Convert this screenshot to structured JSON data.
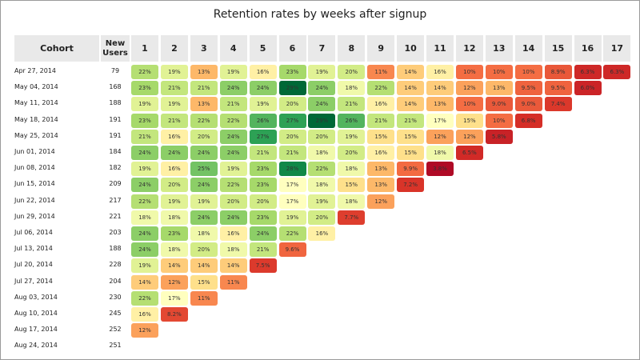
{
  "chart_data": {
    "type": "heatmap",
    "title": "Retention rates by weeks after signup",
    "column_headers": {
      "cohort": "Cohort",
      "new_users": "New Users",
      "weeks": [
        "1",
        "2",
        "3",
        "4",
        "5",
        "6",
        "7",
        "8",
        "9",
        "10",
        "11",
        "12",
        "13",
        "14",
        "15",
        "16",
        "17"
      ]
    },
    "rows": [
      {
        "cohort": "Apr 27, 2014",
        "users": "79",
        "values": [
          "22%",
          "19%",
          "13%",
          "19%",
          "16%",
          "23%",
          "19%",
          "20%",
          "11%",
          "14%",
          "16%",
          "10%",
          "10%",
          "10%",
          "8.9%",
          "6.3%",
          "6.3%"
        ]
      },
      {
        "cohort": "May 04, 2014",
        "users": "168",
        "values": [
          "23%",
          "21%",
          "21%",
          "24%",
          "24%",
          "29%",
          "24%",
          "18%",
          "22%",
          "14%",
          "14%",
          "12%",
          "13%",
          "9.5%",
          "9.5%",
          "6.0%"
        ]
      },
      {
        "cohort": "May 11, 2014",
        "users": "188",
        "values": [
          "19%",
          "19%",
          "13%",
          "21%",
          "19%",
          "20%",
          "24%",
          "21%",
          "16%",
          "14%",
          "13%",
          "10%",
          "9.0%",
          "9.0%",
          "7.4%"
        ]
      },
      {
        "cohort": "May 18, 2014",
        "users": "191",
        "values": [
          "23%",
          "21%",
          "22%",
          "22%",
          "26%",
          "27%",
          "29%",
          "26%",
          "21%",
          "21%",
          "17%",
          "15%",
          "10%",
          "6.8%"
        ]
      },
      {
        "cohort": "May 25, 2014",
        "users": "191",
        "values": [
          "21%",
          "16%",
          "20%",
          "24%",
          "27%",
          "20%",
          "20%",
          "19%",
          "15%",
          "15%",
          "12%",
          "12%",
          "5.8%"
        ]
      },
      {
        "cohort": "Jun 01, 2014",
        "users": "184",
        "values": [
          "24%",
          "24%",
          "24%",
          "24%",
          "21%",
          "21%",
          "18%",
          "20%",
          "16%",
          "15%",
          "18%",
          "6.5%"
        ]
      },
      {
        "cohort": "Jun 08, 2014",
        "users": "182",
        "values": [
          "19%",
          "16%",
          "25%",
          "19%",
          "23%",
          "28%",
          "22%",
          "18%",
          "13%",
          "9.9%",
          "3.8%"
        ]
      },
      {
        "cohort": "Jun 15, 2014",
        "users": "209",
        "values": [
          "24%",
          "20%",
          "24%",
          "22%",
          "23%",
          "17%",
          "18%",
          "15%",
          "13%",
          "7.2%"
        ]
      },
      {
        "cohort": "Jun 22, 2014",
        "users": "217",
        "values": [
          "22%",
          "19%",
          "19%",
          "20%",
          "20%",
          "17%",
          "19%",
          "18%",
          "12%"
        ]
      },
      {
        "cohort": "Jun 29, 2014",
        "users": "221",
        "values": [
          "18%",
          "18%",
          "24%",
          "24%",
          "23%",
          "19%",
          "20%",
          "7.7%"
        ]
      },
      {
        "cohort": "Jul 06, 2014",
        "users": "203",
        "values": [
          "24%",
          "23%",
          "18%",
          "16%",
          "24%",
          "22%",
          "16%"
        ]
      },
      {
        "cohort": "Jul 13, 2014",
        "users": "188",
        "values": [
          "24%",
          "18%",
          "20%",
          "18%",
          "21%",
          "9.6%"
        ]
      },
      {
        "cohort": "Jul 20, 2014",
        "users": "228",
        "values": [
          "19%",
          "14%",
          "14%",
          "14%",
          "7.5%"
        ]
      },
      {
        "cohort": "Jul 27, 2014",
        "users": "204",
        "values": [
          "14%",
          "12%",
          "15%",
          "11%"
        ]
      },
      {
        "cohort": "Aug 03, 2014",
        "users": "230",
        "values": [
          "22%",
          "17%",
          "11%"
        ]
      },
      {
        "cohort": "Aug 10, 2014",
        "users": "245",
        "values": [
          "16%",
          "8.2%"
        ]
      },
      {
        "cohort": "Aug 17, 2014",
        "users": "252",
        "values": [
          "12%"
        ]
      },
      {
        "cohort": "Aug 24, 2014",
        "users": "251",
        "values": []
      }
    ],
    "color_scale": {
      "stops": [
        {
          "v": 3,
          "color": "#a50026"
        },
        {
          "v": 7,
          "color": "#d73027"
        },
        {
          "v": 10,
          "color": "#f46d43"
        },
        {
          "v": 12.5,
          "color": "#fdae61"
        },
        {
          "v": 15,
          "color": "#fee08b"
        },
        {
          "v": 17,
          "color": "#ffffbf"
        },
        {
          "v": 19.5,
          "color": "#d9ef8b"
        },
        {
          "v": 23,
          "color": "#a6d96a"
        },
        {
          "v": 25.5,
          "color": "#66bd63"
        },
        {
          "v": 27.5,
          "color": "#1a9850"
        },
        {
          "v": 29,
          "color": "#006837"
        }
      ]
    }
  }
}
